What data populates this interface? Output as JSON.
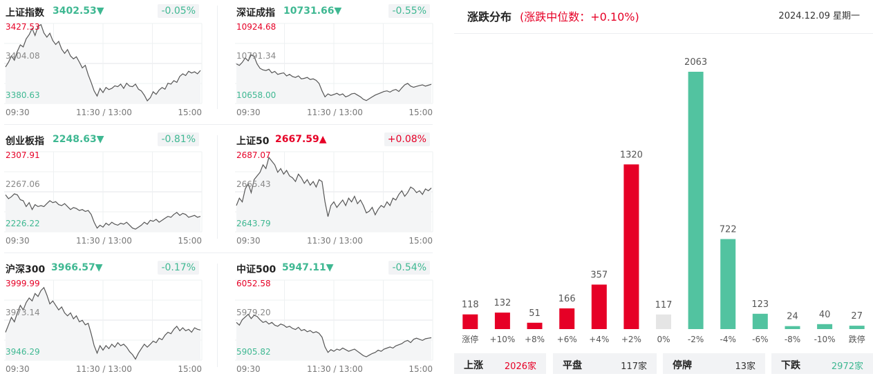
{
  "indices": [
    {
      "name": "上证指数",
      "value": "3402.53",
      "arrow": "▼",
      "direction": "down",
      "change_pct": "-0.05%",
      "y_high": "3427.53",
      "y_mid": "3404.08",
      "y_low": "3380.63",
      "x_start": "09:30",
      "x_mid": "11:30 / 13:00",
      "x_end": "15:00",
      "series": [
        3402.0,
        3404.8,
        3408.5,
        3406.0,
        3411.2,
        3415.0,
        3413.8,
        3418.5,
        3421.0,
        3424.6,
        3420.5,
        3425.8,
        3426.9,
        3422.0,
        3419.5,
        3421.8,
        3417.5,
        3415.2,
        3417.0,
        3412.5,
        3410.0,
        3412.2,
        3408.5,
        3406.8,
        3408.0,
        3404.9,
        3401.5,
        3403.0,
        3397.5,
        3393.0,
        3388.0,
        3385.0,
        3389.5,
        3387.0,
        3390.0,
        3388.8,
        3389.5,
        3391.0,
        3390.5,
        3392.0,
        3389.5,
        3392.5,
        3390.8,
        3390.5,
        3392.0,
        3389.0,
        3388.0,
        3385.5,
        3382.2,
        3384.0,
        3387.5,
        3386.0,
        3388.5,
        3390.0,
        3389.0,
        3392.5,
        3392.0,
        3394.0,
        3393.0,
        3396.5,
        3398.0,
        3397.0,
        3399.5,
        3398.5,
        3399.2,
        3398.0,
        3400.0
      ]
    },
    {
      "name": "深证成指",
      "value": "10731.66",
      "arrow": "▼",
      "direction": "down",
      "change_pct": "-0.55%",
      "y_high": "10924.68",
      "y_mid": "10791.34",
      "y_low": "10658.00",
      "x_start": "09:30",
      "x_mid": "11:30 / 13:00",
      "x_end": "15:00",
      "series": [
        10790.0,
        10785.0,
        10795.0,
        10810.0,
        10800.0,
        10820.0,
        10815.0,
        10790.0,
        10775.0,
        10770.0,
        10768.0,
        10772.0,
        10760.0,
        10765.0,
        10755.0,
        10758.0,
        10760.0,
        10750.0,
        10755.0,
        10748.0,
        10745.0,
        10750.0,
        10740.0,
        10742.0,
        10745.0,
        10738.0,
        10740.0,
        10735.0,
        10725.0,
        10700.0,
        10680.0,
        10690.0,
        10685.0,
        10688.0,
        10692.0,
        10686.0,
        10690.0,
        10680.0,
        10684.0,
        10690.0,
        10692.0,
        10686.0,
        10680.0,
        10672.0,
        10668.0,
        10674.0,
        10680.0,
        10686.0,
        10690.0,
        10694.0,
        10698.0,
        10700.0,
        10696.0,
        10702.0,
        10705.0,
        10698.0,
        10710.0,
        10720.0,
        10725.0,
        10716.0,
        10712.0,
        10715.0,
        10718.0,
        10720.0,
        10716.0,
        10719.0,
        10722.0
      ]
    },
    {
      "name": "创业板指",
      "value": "2248.63",
      "arrow": "▼",
      "direction": "down",
      "change_pct": "-0.81%",
      "y_high": "2307.91",
      "y_mid": "2267.06",
      "y_low": "2226.22",
      "x_start": "09:30",
      "x_mid": "11:30 / 13:00",
      "x_end": "15:00",
      "series": [
        2264.0,
        2260.0,
        2262.0,
        2265.0,
        2264.0,
        2259.0,
        2258.0,
        2252.0,
        2256.0,
        2249.0,
        2254.0,
        2252.0,
        2253.0,
        2252.0,
        2255.0,
        2258.0,
        2256.0,
        2257.0,
        2254.0,
        2253.0,
        2255.0,
        2252.0,
        2249.0,
        2251.0,
        2250.0,
        2248.0,
        2249.0,
        2247.0,
        2248.0,
        2244.0,
        2236.0,
        2230.0,
        2233.0,
        2231.0,
        2235.0,
        2233.0,
        2236.0,
        2234.0,
        2233.0,
        2235.0,
        2234.0,
        2236.0,
        2233.0,
        2230.0,
        2229.0,
        2231.0,
        2233.0,
        2236.0,
        2234.0,
        2238.0,
        2237.0,
        2239.0,
        2236.0,
        2238.0,
        2240.0,
        2242.0,
        2241.0,
        2244.0,
        2246.0,
        2243.0,
        2245.0,
        2244.0,
        2241.0,
        2242.0,
        2243.0,
        2241.0,
        2242.0
      ]
    },
    {
      "name": "上证50",
      "value": "2667.59",
      "arrow": "▲",
      "direction": "up",
      "change_pct": "+0.08%",
      "y_high": "2687.07",
      "y_mid": "2665.43",
      "y_low": "2643.79",
      "x_start": "09:30",
      "x_mid": "11:30 / 13:00",
      "x_end": "15:00",
      "series": [
        2658.0,
        2662.0,
        2660.0,
        2667.0,
        2670.0,
        2665.0,
        2672.0,
        2674.0,
        2676.0,
        2680.0,
        2678.0,
        2684.0,
        2682.0,
        2680.0,
        2676.0,
        2678.0,
        2675.0,
        2677.0,
        2674.0,
        2673.0,
        2671.0,
        2675.0,
        2673.0,
        2670.0,
        2672.0,
        2669.0,
        2671.0,
        2668.0,
        2672.0,
        2671.0,
        2660.0,
        2652.0,
        2658.0,
        2660.0,
        2657.0,
        2659.0,
        2661.0,
        2658.0,
        2662.0,
        2660.0,
        2663.0,
        2659.0,
        2661.0,
        2658.0,
        2654.0,
        2655.0,
        2657.0,
        2653.0,
        2656.0,
        2658.0,
        2657.0,
        2660.0,
        2658.0,
        2662.0,
        2661.0,
        2664.0,
        2666.0,
        2663.0,
        2665.0,
        2668.0,
        2667.0,
        2665.0,
        2666.0,
        2664.0,
        2667.0,
        2666.0,
        2667.5
      ]
    },
    {
      "name": "沪深300",
      "value": "3966.57",
      "arrow": "▼",
      "direction": "down",
      "change_pct": "-0.17%",
      "y_high": "3999.99",
      "y_mid": "3973.14",
      "y_low": "3946.29",
      "x_start": "09:30",
      "x_mid": "11:30 / 13:00",
      "x_end": "15:00",
      "series": [
        3965.0,
        3970.0,
        3975.0,
        3972.0,
        3978.0,
        3983.0,
        3980.0,
        3985.0,
        3988.0,
        3986.0,
        3991.0,
        3989.0,
        3993.0,
        3995.0,
        3990.0,
        3984.0,
        3986.0,
        3983.0,
        3980.0,
        3982.0,
        3978.0,
        3976.0,
        3978.0,
        3974.0,
        3976.0,
        3972.0,
        3973.0,
        3970.0,
        3971.0,
        3964.0,
        3956.0,
        3951.0,
        3956.0,
        3953.0,
        3956.0,
        3954.0,
        3957.0,
        3955.0,
        3958.0,
        3956.0,
        3957.0,
        3955.0,
        3952.0,
        3950.0,
        3947.0,
        3951.0,
        3954.0,
        3957.0,
        3955.0,
        3957.0,
        3959.0,
        3958.0,
        3961.0,
        3960.0,
        3963.0,
        3965.0,
        3964.0,
        3967.0,
        3969.0,
        3966.0,
        3968.0,
        3966.0,
        3967.0,
        3965.0,
        3968.0,
        3967.0,
        3966.5
      ]
    },
    {
      "name": "中证500",
      "value": "5947.11",
      "arrow": "▼",
      "direction": "down",
      "change_pct": "-0.54%",
      "y_high": "6052.58",
      "y_mid": "5979.20",
      "y_low": "5905.82",
      "x_start": "09:30",
      "x_mid": "11:30 / 13:00",
      "x_end": "15:00",
      "series": [
        5975.0,
        5970.0,
        5980.0,
        5985.0,
        5990.0,
        5982.0,
        5988.0,
        5986.0,
        5980.0,
        5975.0,
        5977.0,
        5972.0,
        5975.0,
        5970.0,
        5968.0,
        5972.0,
        5970.0,
        5966.0,
        5968.0,
        5964.0,
        5962.0,
        5966.0,
        5960.0,
        5962.0,
        5958.0,
        5960.0,
        5956.0,
        5958.0,
        5955.0,
        5948.0,
        5930.0,
        5920.0,
        5925.0,
        5922.0,
        5926.0,
        5924.0,
        5928.0,
        5925.0,
        5922.0,
        5924.0,
        5926.0,
        5922.0,
        5918.0,
        5914.0,
        5912.0,
        5915.0,
        5918.0,
        5920.0,
        5924.0,
        5922.0,
        5926.0,
        5928.0,
        5930.0,
        5928.0,
        5932.0,
        5934.0,
        5936.0,
        5940.0,
        5942.0,
        5938.0,
        5944.0,
        5946.0,
        5944.0,
        5942.0,
        5945.0,
        5946.0,
        5947.0
      ]
    }
  ],
  "distribution": {
    "title": "涨跌分布",
    "subtitle": "(涨跌中位数：+0.10%)",
    "date": "2024.12.09 星期一",
    "colors": {
      "up": "#e60026",
      "down": "#52c3a0",
      "flat": "#e5e5e5"
    },
    "chart_data": {
      "type": "bar",
      "categories": [
        "涨停",
        "+10%",
        "+8%",
        "+6%",
        "+4%",
        "+2%",
        "0%",
        "-2%",
        "-4%",
        "-6%",
        "-8%",
        "-10%",
        "跌停"
      ],
      "values": [
        118,
        132,
        51,
        166,
        357,
        1320,
        117,
        2063,
        722,
        123,
        24,
        40,
        27
      ],
      "kinds": [
        "up",
        "up",
        "up",
        "up",
        "up",
        "up",
        "flat",
        "down",
        "down",
        "down",
        "down",
        "down",
        "down"
      ],
      "ylim": [
        0,
        2063
      ]
    },
    "summary": [
      {
        "label": "上涨",
        "value": "2026家",
        "kind": "up"
      },
      {
        "label": "平盘",
        "value": "117家",
        "kind": "flat"
      },
      {
        "label": "停牌",
        "value": "13家",
        "kind": "flat"
      },
      {
        "label": "下跌",
        "value": "2972家",
        "kind": "down"
      }
    ]
  }
}
